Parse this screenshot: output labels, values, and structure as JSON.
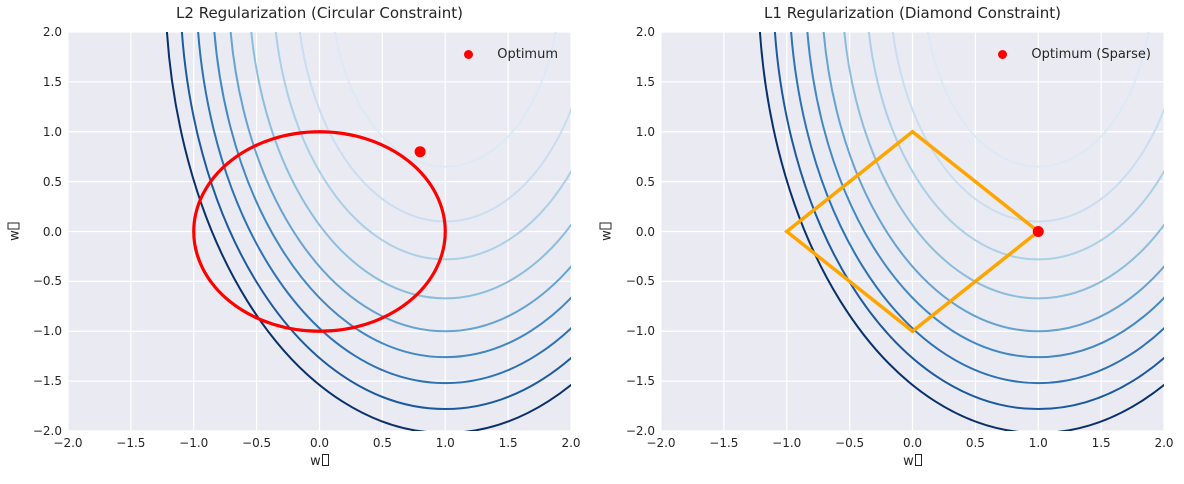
{
  "figure": {
    "background": "#ffffff",
    "axes_background": "#eaeaf2",
    "grid_color": "#ffffff",
    "text_color": "#262626"
  },
  "chart_data": [
    {
      "type": "contour",
      "title": "L2 Regularization (Circular Constraint)",
      "xlabel": "w",
      "ylabel": "w",
      "axis_label_missing_glyph_box": true,
      "xlim": [
        -2.0,
        2.0
      ],
      "ylim": [
        -2.0,
        2.0
      ],
      "grid": true,
      "tick_values": [
        -2.0,
        -1.5,
        -1.0,
        -0.5,
        0.0,
        0.5,
        1.0,
        1.5,
        2.0
      ],
      "xtick_labels": [
        "−2.0",
        "−1.5",
        "−1.0",
        "−0.5",
        "0.0",
        "0.5",
        "1.0",
        "1.5",
        "2.0"
      ],
      "ytick_labels": [
        "−2.0",
        "−1.5",
        "−1.0",
        "−0.5",
        "0.0",
        "0.5",
        "1.0",
        "1.5",
        "2.0"
      ],
      "legend": {
        "position": "upper right",
        "entries": [
          {
            "label": "Optimum",
            "marker": "dot",
            "color": "#ff0000"
          }
        ]
      },
      "loss_contours": {
        "center": [
          1.0,
          2.5
        ],
        "ry": [
          1.85,
          2.4,
          2.78,
          3.17,
          3.5,
          3.76,
          4.02,
          4.28,
          4.52
        ],
        "rx_ratio": 2.03,
        "colors_inner_to_outer": [
          "#dde9f5",
          "#c9def0",
          "#abd0e6",
          "#8cbedb",
          "#66a3d2",
          "#4289c4",
          "#2d72b5",
          "#1b5a9e",
          "#08306b"
        ],
        "line_width": 2
      },
      "constraint": {
        "shape": "circle",
        "center": [
          0.0,
          0.0
        ],
        "radius": 1.0,
        "color": "#ff0000",
        "line_width": 3.2
      },
      "optimum": {
        "x": 0.8,
        "y": 0.8,
        "color": "#ff0000",
        "marker": "dot"
      }
    },
    {
      "type": "contour",
      "title": "L1 Regularization (Diamond Constraint)",
      "xlabel": "w",
      "ylabel": "w",
      "axis_label_missing_glyph_box": true,
      "xlim": [
        -2.0,
        2.0
      ],
      "ylim": [
        -2.0,
        2.0
      ],
      "grid": true,
      "tick_values": [
        -2.0,
        -1.5,
        -1.0,
        -0.5,
        0.0,
        0.5,
        1.0,
        1.5,
        2.0
      ],
      "xtick_labels": [
        "−2.0",
        "−1.5",
        "−1.0",
        "−0.5",
        "0.0",
        "0.5",
        "1.0",
        "1.5",
        "2.0"
      ],
      "ytick_labels": [
        "−2.0",
        "−1.5",
        "−1.0",
        "−0.5",
        "0.0",
        "0.5",
        "1.0",
        "1.5",
        "2.0"
      ],
      "legend": {
        "position": "upper right",
        "entries": [
          {
            "label": "Optimum (Sparse)",
            "marker": "dot",
            "color": "#ff0000"
          }
        ]
      },
      "loss_contours": {
        "center": [
          1.0,
          2.5
        ],
        "ry": [
          1.85,
          2.4,
          2.78,
          3.17,
          3.5,
          3.76,
          4.02,
          4.28,
          4.52
        ],
        "rx_ratio": 2.03,
        "colors_inner_to_outer": [
          "#dde9f5",
          "#c9def0",
          "#abd0e6",
          "#8cbedb",
          "#66a3d2",
          "#4289c4",
          "#2d72b5",
          "#1b5a9e",
          "#08306b"
        ],
        "line_width": 2
      },
      "constraint": {
        "shape": "diamond",
        "vertices": [
          [
            1.0,
            0.0
          ],
          [
            0.0,
            1.0
          ],
          [
            -1.0,
            0.0
          ],
          [
            0.0,
            -1.0
          ]
        ],
        "color": "#ffa500",
        "line_width": 3.5
      },
      "optimum": {
        "x": 1.0,
        "y": 0.0,
        "color": "#ff0000",
        "marker": "dot"
      }
    }
  ]
}
